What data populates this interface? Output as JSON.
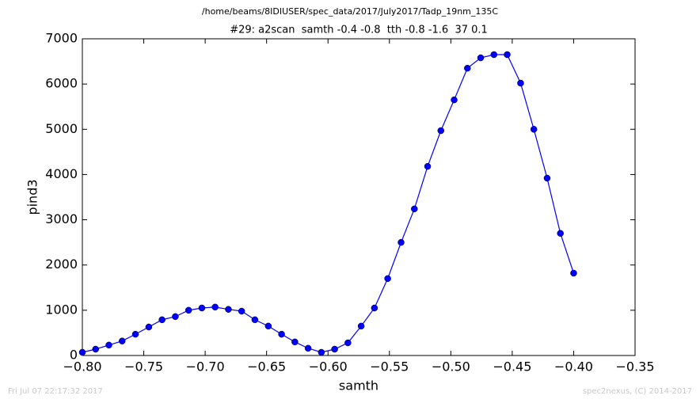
{
  "chart_data": {
    "type": "line",
    "suptitle": "/home/beams/8IDIUSER/spec_data/2017/July2017/Tadp_19nm_135C",
    "title": "#29: a2scan  samth -0.4 -0.8  tth -0.8 -1.6  37 0.1",
    "x_label": "samth",
    "y_label": "pind3",
    "footer_left": "Fri Jul 07 22:17:32 2017",
    "footer_right": "spec2nexus, (C) 2014-2017",
    "x": [
      -0.8,
      -0.7892,
      -0.7784,
      -0.7676,
      -0.7568,
      -0.7459,
      -0.7351,
      -0.7243,
      -0.7135,
      -0.7027,
      -0.6919,
      -0.6811,
      -0.6703,
      -0.6595,
      -0.6486,
      -0.6378,
      -0.627,
      -0.6162,
      -0.6054,
      -0.5946,
      -0.5838,
      -0.573,
      -0.5622,
      -0.5514,
      -0.5405,
      -0.5297,
      -0.5189,
      -0.5081,
      -0.4973,
      -0.4865,
      -0.4757,
      -0.4649,
      -0.4541,
      -0.4432,
      -0.4324,
      -0.4216,
      -0.4108,
      -0.4
    ],
    "series": [
      {
        "color": "#0000ff",
        "values": [
          70,
          140,
          230,
          320,
          470,
          630,
          790,
          860,
          1000,
          1050,
          1070,
          1020,
          980,
          790,
          650,
          470,
          300,
          160,
          70,
          140,
          280,
          650,
          1050,
          1700,
          2500,
          3240,
          4180,
          4970,
          5650,
          6350,
          6580,
          6650,
          6650,
          6020,
          5000,
          3920,
          2700,
          1820
        ]
      }
    ],
    "xlim": [
      -0.8,
      -0.35
    ],
    "xticks": [
      {
        "value": -0.8,
        "label": "−0.80"
      },
      {
        "value": -0.75,
        "label": "−0.75"
      },
      {
        "value": -0.7,
        "label": "−0.70"
      },
      {
        "value": -0.65,
        "label": "−0.65"
      },
      {
        "value": -0.6,
        "label": "−0.60"
      },
      {
        "value": -0.55,
        "label": "−0.55"
      },
      {
        "value": -0.5,
        "label": "−0.50"
      },
      {
        "value": -0.45,
        "label": "−0.45"
      },
      {
        "value": -0.4,
        "label": "−0.40"
      },
      {
        "value": -0.35,
        "label": "−0.35"
      }
    ],
    "ylim": [
      0,
      7000
    ],
    "yticks": [
      0,
      1000,
      2000,
      3000,
      4000,
      5000,
      6000,
      7000
    ],
    "grid": false
  }
}
